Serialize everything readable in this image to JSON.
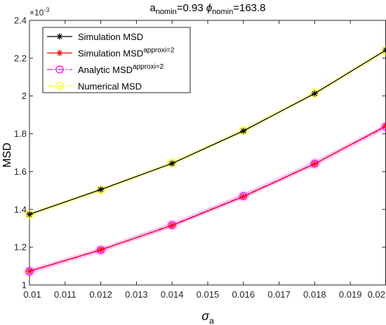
{
  "chart_data": {
    "type": "line",
    "title": {
      "a_base": "a",
      "a_sub": "nomin",
      "a_value": "=0.93 ",
      "phi_symbol": "ϕ",
      "phi_sub": "nomin",
      "phi_value": "=163.8"
    },
    "xlabel": {
      "symbol": "σ",
      "sub": "a"
    },
    "ylabel": "MSD",
    "y_exponent_label": "×10",
    "y_exponent_power": "-3",
    "xlim": [
      0.01,
      0.02
    ],
    "ylim": [
      1.0,
      2.4
    ],
    "x_ticks": [
      0.01,
      0.011,
      0.012,
      0.013,
      0.014,
      0.015,
      0.016,
      0.017,
      0.018,
      0.019,
      0.02
    ],
    "x_tick_labels": [
      "0.01",
      "0.011",
      "0.012",
      "0.013",
      "0.014",
      "0.015",
      "0.016",
      "0.017",
      "0.018",
      "0.019",
      "0.02"
    ],
    "y_ticks": [
      1.0,
      1.2,
      1.4,
      1.6,
      1.8,
      2.0,
      2.2,
      2.4
    ],
    "y_tick_labels": [
      "1",
      "1.2",
      "1.4",
      "1.6",
      "1.8",
      "2",
      "2.2",
      "2.4"
    ],
    "grid": false,
    "legend_position": "top-left",
    "x": [
      0.01,
      0.012,
      0.014,
      0.016,
      0.018,
      0.02
    ],
    "series": [
      {
        "legend_base": "Numerical MSD",
        "legend_sup": "",
        "color": "#ffff00",
        "line_style": "dashdot",
        "marker": "circle",
        "glow": true,
        "values": [
          1.372,
          1.502,
          1.645,
          1.817,
          2.015,
          2.24
        ]
      },
      {
        "legend_base": "Simulation MSD",
        "legend_sup": "",
        "color": "#000000",
        "line_style": "solid",
        "marker": "asterisk",
        "glow": false,
        "values": [
          1.374,
          1.505,
          1.643,
          1.815,
          2.013,
          2.243
        ]
      },
      {
        "legend_base": "Analytic MSD",
        "legend_sup": "approxi=2",
        "color": "#ff00ff",
        "line_style": "dashdot",
        "marker": "circle",
        "glow": true,
        "values": [
          1.072,
          1.185,
          1.317,
          1.47,
          1.642,
          1.838
        ]
      },
      {
        "legend_base": "Simulation MSD",
        "legend_sup": "approxi=2",
        "color": "#ff0000",
        "line_style": "solid",
        "marker": "asterisk",
        "glow": false,
        "values": [
          1.073,
          1.186,
          1.315,
          1.468,
          1.641,
          1.842
        ]
      }
    ],
    "legend_order": [
      1,
      3,
      2,
      0
    ]
  }
}
